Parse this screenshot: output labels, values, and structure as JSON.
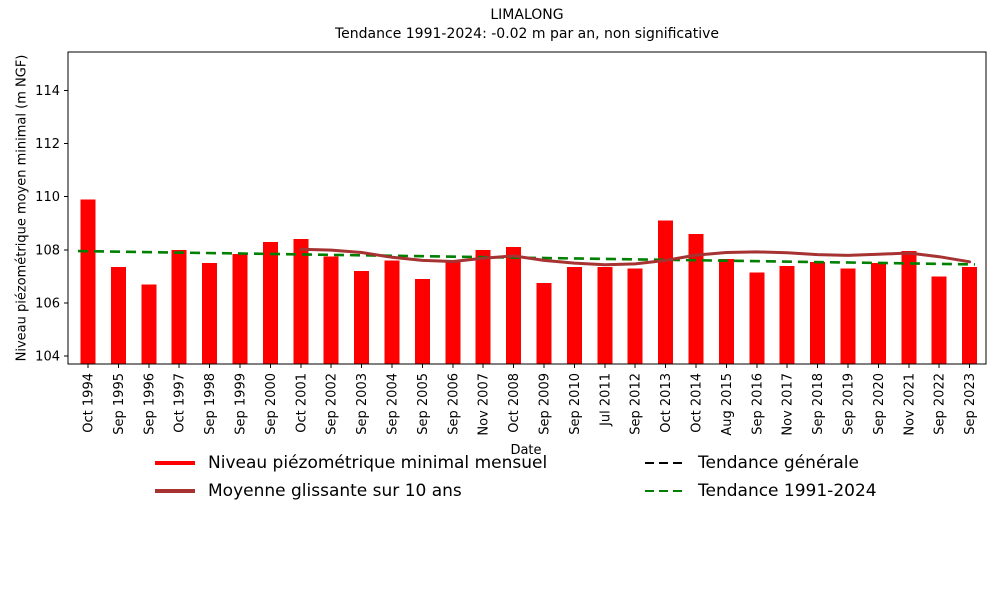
{
  "page": {
    "background": "#ffffff"
  },
  "chart_data": {
    "type": "bar",
    "title": "LIMALONG",
    "subtitle": "Tendance 1991-2024: -0.02 m par an, non significative",
    "xlabel": "Date",
    "ylabel": "Niveau piézométrique moyen minimal (m NGF)",
    "ylim": [
      103.7,
      115.45
    ],
    "yticks": [
      104,
      106,
      108,
      110,
      112,
      114
    ],
    "grid": false,
    "legend_position": "bottom",
    "legend_columns": 2,
    "categories": [
      "Oct 1994",
      "Sep 1995",
      "Sep 1996",
      "Oct 1997",
      "Sep 1998",
      "Sep 1999",
      "Sep 2000",
      "Oct 2001",
      "Sep 2002",
      "Sep 2003",
      "Sep 2004",
      "Sep 2005",
      "Sep 2006",
      "Nov 2007",
      "Oct 2008",
      "Sep 2009",
      "Sep 2010",
      "Jul 2011",
      "Sep 2012",
      "Oct 2013",
      "Oct 2014",
      "Aug 2015",
      "Sep 2016",
      "Nov 2017",
      "Sep 2018",
      "Sep 2019",
      "Sep 2020",
      "Nov 2021",
      "Sep 2022",
      "Sep 2023"
    ],
    "series": [
      {
        "name": "Niveau piézométrique minimal mensuel",
        "type": "bar",
        "color": "#ff0000",
        "values": [
          109.9,
          107.35,
          106.7,
          108.0,
          107.5,
          107.85,
          108.3,
          108.4,
          107.75,
          107.2,
          107.6,
          106.9,
          107.55,
          108.0,
          108.1,
          106.75,
          107.35,
          107.35,
          107.3,
          109.1,
          108.6,
          107.65,
          107.15,
          107.4,
          107.55,
          107.3,
          107.5,
          107.95,
          107.0,
          107.35
        ]
      },
      {
        "name": "Moyenne glissante sur 10 ans",
        "type": "line",
        "color": "#a63232",
        "start_category_index": 7,
        "values": [
          108.02,
          107.99,
          107.9,
          107.72,
          107.6,
          107.56,
          107.68,
          107.77,
          107.6,
          107.5,
          107.44,
          107.47,
          107.6,
          107.8,
          107.9,
          107.92,
          107.89,
          107.82,
          107.79,
          107.83,
          107.88,
          107.74,
          107.55
        ]
      },
      {
        "name": "Tendance générale",
        "type": "trend",
        "color": "#000000",
        "dashed": true,
        "visible": false
      },
      {
        "name": "Tendance 1991-2024",
        "type": "trend",
        "color": "#008000",
        "dashed": true,
        "visible": true,
        "start_value": 107.95,
        "end_value": 107.45
      }
    ]
  }
}
